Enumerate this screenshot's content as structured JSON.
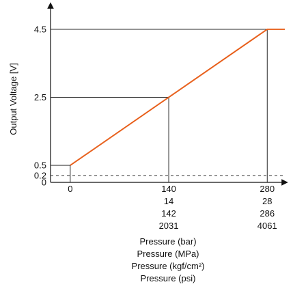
{
  "chart_data": {
    "type": "line",
    "title": "",
    "ylabel": "Output Voltage [V]",
    "x_axis_titles": [
      "Pressure (bar)",
      "Pressure (MPa)",
      "Pressure (kgf/cm²)",
      "Pressure (psi)"
    ],
    "xlim": [
      -28,
      305
    ],
    "ylim": [
      0,
      5.2
    ],
    "y_ticks": [
      {
        "value": 0,
        "label": "0"
      },
      {
        "value": 0.2,
        "label": "0.2"
      },
      {
        "value": 0.5,
        "label": "0.5"
      },
      {
        "value": 2.5,
        "label": "2.5"
      },
      {
        "value": 4.5,
        "label": "4.5"
      }
    ],
    "x_ticks": [
      {
        "value": 0,
        "labels": [
          "0"
        ]
      },
      {
        "value": 140,
        "labels": [
          "140",
          "14",
          "142",
          "2031"
        ]
      },
      {
        "value": 280,
        "labels": [
          "280",
          "28",
          "286",
          "4061"
        ]
      }
    ],
    "series": [
      {
        "color": "#e8601c",
        "x": [
          0,
          140,
          280,
          305
        ],
        "y": [
          0.5,
          2.5,
          4.5,
          4.5
        ]
      }
    ],
    "reference_lines": [
      {
        "axis": "y",
        "value": 0.2,
        "style": "dashed"
      }
    ],
    "guide_lines": [
      {
        "x": 0,
        "y": 0.5
      },
      {
        "x": 140,
        "y": 2.5
      },
      {
        "x": 280,
        "y": 4.5
      }
    ],
    "grid": false
  }
}
